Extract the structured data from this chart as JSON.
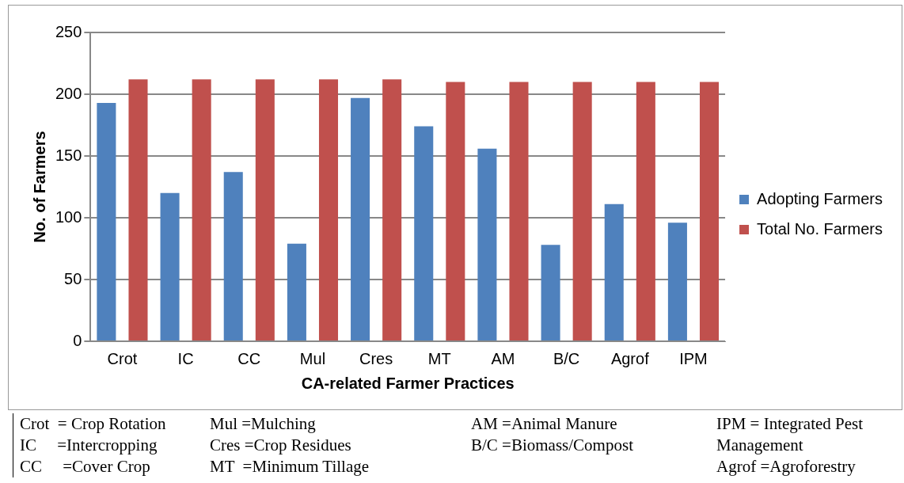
{
  "chart_data": {
    "type": "bar",
    "xlabel": "CA-related Farmer Practices",
    "ylabel": "No. of Farmers",
    "categories": [
      "Crot",
      "IC",
      "CC",
      "Mul",
      "Cres",
      "MT",
      "AM",
      "B/C",
      "Agrof",
      "IPM"
    ],
    "series": [
      {
        "name": "Adopting Farmers",
        "color": "#4f81bd",
        "values": [
          193,
          120,
          137,
          79,
          197,
          174,
          156,
          78,
          111,
          96
        ]
      },
      {
        "name": "Total No. Farmers",
        "color": "#c0504d",
        "values": [
          212,
          212,
          212,
          212,
          212,
          210,
          210,
          210,
          210,
          210
        ]
      }
    ],
    "ylim": [
      0,
      250
    ],
    "yticks": [
      0,
      50,
      100,
      150,
      200,
      250
    ],
    "grid": "y",
    "legend": "right",
    "annotations": [
      "Crot  = Crop Rotation",
      "IC     =Intercropping",
      "CC     =Cover Crop",
      "Mul =Mulching",
      "Cres =Crop Residues",
      "MT  =Minimum Tillage",
      "AM =Animal Manure",
      "B/C =Biomass/Compost",
      "IPM = Integrated Pest Management",
      "Agrof =Agroforestry"
    ]
  }
}
